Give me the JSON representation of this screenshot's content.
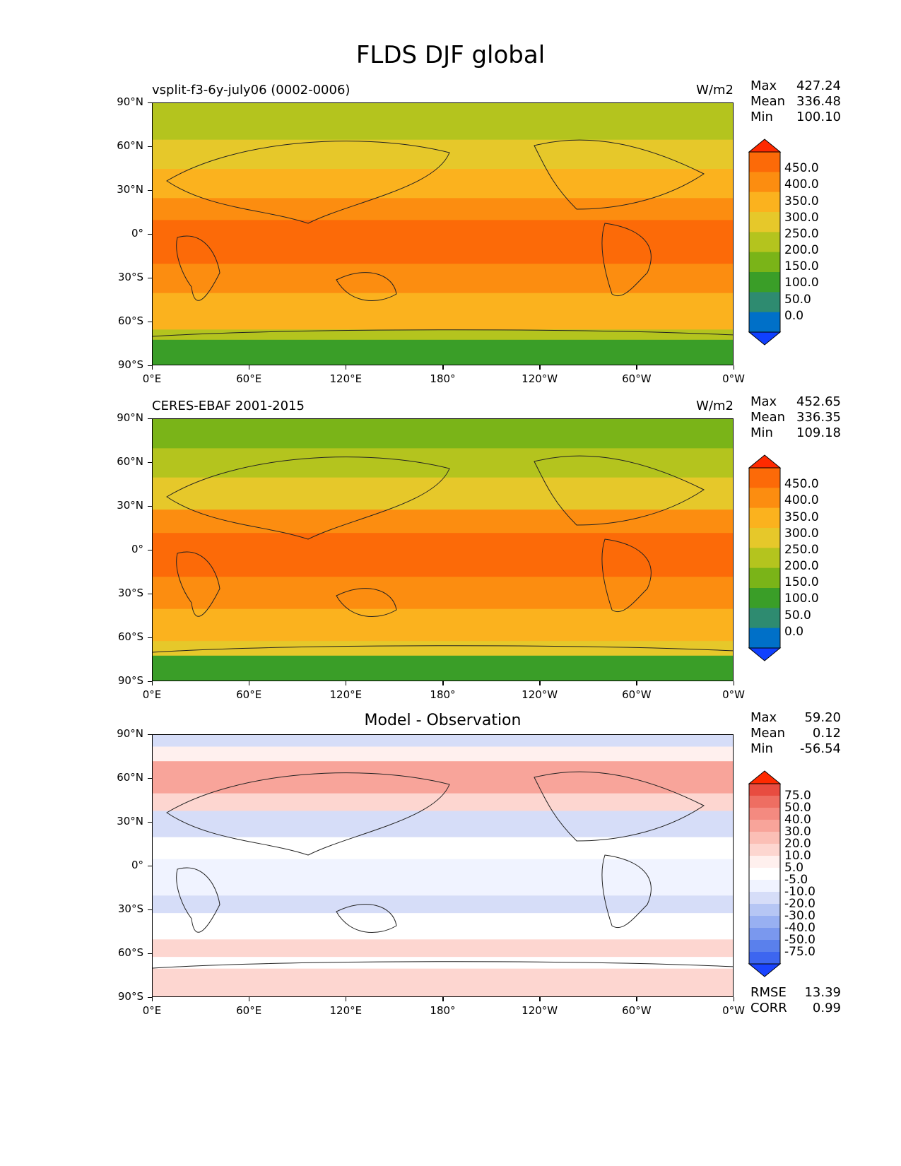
{
  "figure_title": "FLDS DJF global",
  "colors": {
    "abs_levels": [
      "#1040ff",
      "#0070c8",
      "#2e8b70",
      "#3a9e28",
      "#7ab418",
      "#b4c41e",
      "#e6c82a",
      "#fbb21e",
      "#fc8d10",
      "#fc6a08",
      "#ff2a00"
    ],
    "diff_levels": [
      "#1a44ff",
      "#3d66f0",
      "#5a80ec",
      "#7a98ee",
      "#98b0f2",
      "#b6c6f4",
      "#d6ddf8",
      "#f0f3ff",
      "#ffffff",
      "#fff0ee",
      "#fdd6d0",
      "#fbbfb6",
      "#f8a49a",
      "#f48a80",
      "#ee6e62",
      "#e84c40",
      "#ff2a00"
    ]
  },
  "chart_data": [
    {
      "type": "heatmap",
      "panel_title_left": "vsplit-f3-6y-july06 (0002-0006)",
      "panel_title_center": "",
      "units": "W/m2",
      "stats": [
        {
          "k": "Max",
          "v": "427.24"
        },
        {
          "k": "Mean",
          "v": "336.48"
        },
        {
          "k": "Min",
          "v": "100.10"
        }
      ],
      "colorbar_labels": [
        "450.0",
        "400.0",
        "350.0",
        "300.0",
        "250.0",
        "200.0",
        "150.0",
        "100.0",
        "50.0",
        "0.0"
      ],
      "colorbar_type": "abs",
      "xticks": [
        "0°E",
        "60°E",
        "120°E",
        "180°",
        "120°W",
        "60°W",
        "0°W"
      ],
      "yticks": [
        "90°N",
        "60°N",
        "30°N",
        "0°",
        "30°S",
        "60°S",
        "90°S"
      ],
      "lat_bands": [
        {
          "lat": [
            90,
            65
          ],
          "level": 5
        },
        {
          "lat": [
            65,
            45
          ],
          "level": 6
        },
        {
          "lat": [
            45,
            25
          ],
          "level": 7
        },
        {
          "lat": [
            25,
            10
          ],
          "level": 8
        },
        {
          "lat": [
            10,
            -20
          ],
          "level": 9
        },
        {
          "lat": [
            -20,
            -40
          ],
          "level": 8
        },
        {
          "lat": [
            -40,
            -65
          ],
          "level": 7
        },
        {
          "lat": [
            -65,
            -72
          ],
          "level": 5
        },
        {
          "lat": [
            -72,
            -90
          ],
          "level": 3
        }
      ],
      "ylim": [
        -90,
        90
      ],
      "xlim": [
        0,
        360
      ]
    },
    {
      "type": "heatmap",
      "panel_title_left": "CERES-EBAF 2001-2015",
      "panel_title_center": "",
      "units": "W/m2",
      "stats": [
        {
          "k": "Max",
          "v": "452.65"
        },
        {
          "k": "Mean",
          "v": "336.35"
        },
        {
          "k": "Min",
          "v": "109.18"
        }
      ],
      "colorbar_labels": [
        "450.0",
        "400.0",
        "350.0",
        "300.0",
        "250.0",
        "200.0",
        "150.0",
        "100.0",
        "50.0",
        "0.0"
      ],
      "colorbar_type": "abs",
      "xticks": [
        "0°E",
        "60°E",
        "120°E",
        "180°",
        "120°W",
        "60°W",
        "0°W"
      ],
      "yticks": [
        "90°N",
        "60°N",
        "30°N",
        "0°",
        "30°S",
        "60°S",
        "90°S"
      ],
      "lat_bands": [
        {
          "lat": [
            90,
            70
          ],
          "level": 4
        },
        {
          "lat": [
            70,
            50
          ],
          "level": 5
        },
        {
          "lat": [
            50,
            28
          ],
          "level": 6
        },
        {
          "lat": [
            28,
            12
          ],
          "level": 8
        },
        {
          "lat": [
            12,
            -18
          ],
          "level": 9
        },
        {
          "lat": [
            -18,
            -40
          ],
          "level": 8
        },
        {
          "lat": [
            -40,
            -62
          ],
          "level": 7
        },
        {
          "lat": [
            -62,
            -72
          ],
          "level": 6
        },
        {
          "lat": [
            -72,
            -90
          ],
          "level": 3
        }
      ],
      "ylim": [
        -90,
        90
      ],
      "xlim": [
        0,
        360
      ]
    },
    {
      "type": "heatmap",
      "panel_title_left": "",
      "panel_title_center": "Model - Observation",
      "units": "",
      "stats": [
        {
          "k": "Max",
          "v": "59.20"
        },
        {
          "k": "Mean",
          "v": "0.12"
        },
        {
          "k": "Min",
          "v": "-56.54"
        }
      ],
      "extra_stats": [
        {
          "k": "RMSE",
          "v": "13.39"
        },
        {
          "k": "CORR",
          "v": "0.99"
        }
      ],
      "colorbar_labels": [
        "75.0",
        "50.0",
        "40.0",
        "30.0",
        "20.0",
        "10.0",
        "5.0",
        "-5.0",
        "-10.0",
        "-20.0",
        "-30.0",
        "-40.0",
        "-50.0",
        "-75.0"
      ],
      "colorbar_type": "diff",
      "xticks": [
        "0°E",
        "60°E",
        "120°E",
        "180°",
        "120°W",
        "60°W",
        "0°W"
      ],
      "yticks": [
        "90°N",
        "60°N",
        "30°N",
        "0°",
        "30°S",
        "60°S",
        "90°S"
      ],
      "lat_bands": [
        {
          "lat": [
            90,
            82
          ],
          "level": 6
        },
        {
          "lat": [
            82,
            72
          ],
          "level": 9
        },
        {
          "lat": [
            72,
            50
          ],
          "level": 12
        },
        {
          "lat": [
            50,
            38
          ],
          "level": 10
        },
        {
          "lat": [
            38,
            20
          ],
          "level": 6
        },
        {
          "lat": [
            20,
            5
          ],
          "level": 8
        },
        {
          "lat": [
            5,
            -20
          ],
          "level": 7
        },
        {
          "lat": [
            -20,
            -32
          ],
          "level": 6
        },
        {
          "lat": [
            -32,
            -50
          ],
          "level": 8
        },
        {
          "lat": [
            -50,
            -62
          ],
          "level": 10
        },
        {
          "lat": [
            -62,
            -70
          ],
          "level": 8
        },
        {
          "lat": [
            -70,
            -90
          ],
          "level": 10
        }
      ],
      "ylim": [
        -90,
        90
      ],
      "xlim": [
        0,
        360
      ]
    }
  ]
}
